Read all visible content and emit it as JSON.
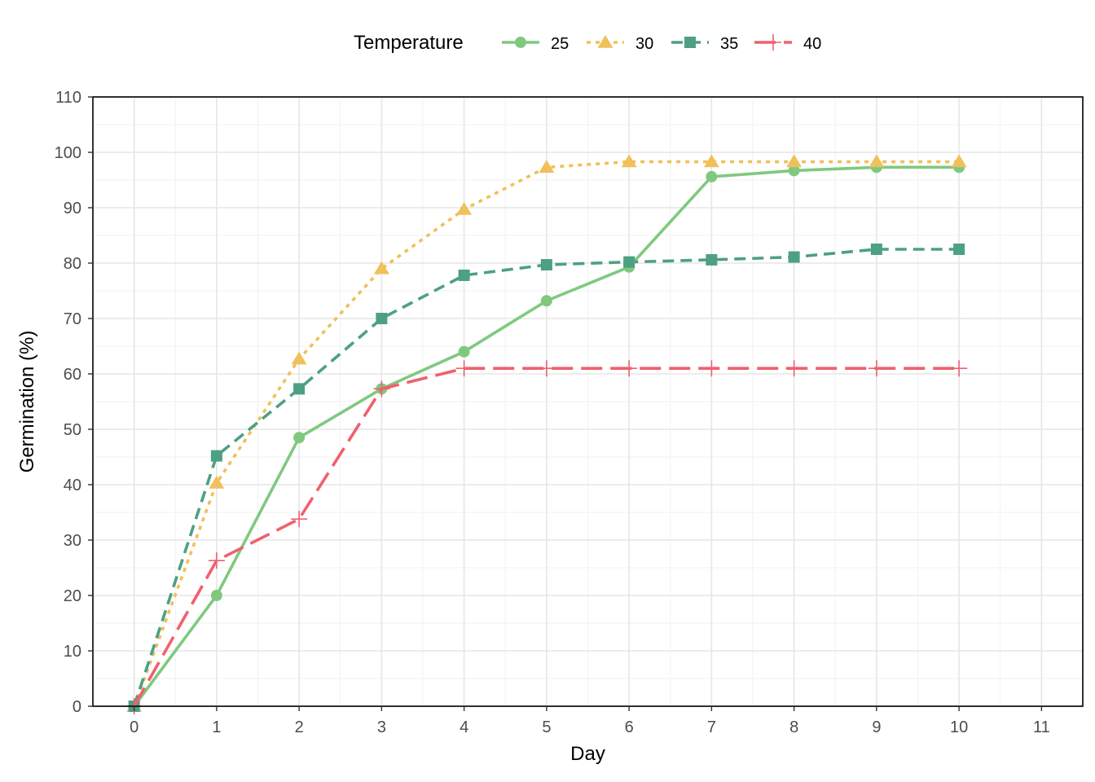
{
  "chart_data": {
    "type": "line",
    "xlabel": "Day",
    "ylabel": "Germination (%)",
    "xlim": [
      -0.5,
      11.5
    ],
    "ylim": [
      0,
      110
    ],
    "x_ticks": [
      0,
      1,
      2,
      3,
      4,
      5,
      6,
      7,
      8,
      9,
      10,
      11
    ],
    "x_tick_labels": [
      "0",
      "1",
      "2",
      "3",
      "4",
      "5",
      "6",
      "7",
      "8",
      "9",
      "10",
      "11"
    ],
    "y_ticks": [
      0,
      10,
      20,
      30,
      40,
      50,
      60,
      70,
      80,
      90,
      100,
      110
    ],
    "y_tick_labels": [
      "0",
      "10",
      "20",
      "30",
      "40",
      "50",
      "60",
      "70",
      "80",
      "90",
      "100",
      "110"
    ],
    "grid": true,
    "legend": {
      "title": "Temperature",
      "position": "top"
    },
    "x": [
      0,
      1,
      2,
      3,
      4,
      5,
      6,
      7,
      8,
      9,
      10
    ],
    "series": [
      {
        "name": "25",
        "color": "#7fc97f",
        "marker": "circle",
        "line_style": "solid",
        "values": [
          0,
          20,
          48.5,
          57.3,
          64,
          73.2,
          79.3,
          95.6,
          96.7,
          97.3,
          97.3
        ]
      },
      {
        "name": "30",
        "color": "#f0c05a",
        "marker": "triangle",
        "line_style": "dotted",
        "values": [
          0,
          40.3,
          62.7,
          79,
          89.7,
          97.3,
          98.3,
          98.3,
          98.3,
          98.3,
          98.3
        ]
      },
      {
        "name": "35",
        "color": "#4da083",
        "marker": "square",
        "line_style": "dashed",
        "values": [
          0,
          45.2,
          57.3,
          70,
          77.8,
          79.7,
          80.2,
          80.6,
          81.1,
          82.5,
          82.5
        ]
      },
      {
        "name": "40",
        "color": "#f0606e",
        "marker": "plus",
        "line_style": "longdash",
        "values": [
          0,
          26.3,
          33.8,
          57.3,
          61,
          61,
          61,
          61,
          61,
          61,
          61
        ]
      }
    ]
  }
}
